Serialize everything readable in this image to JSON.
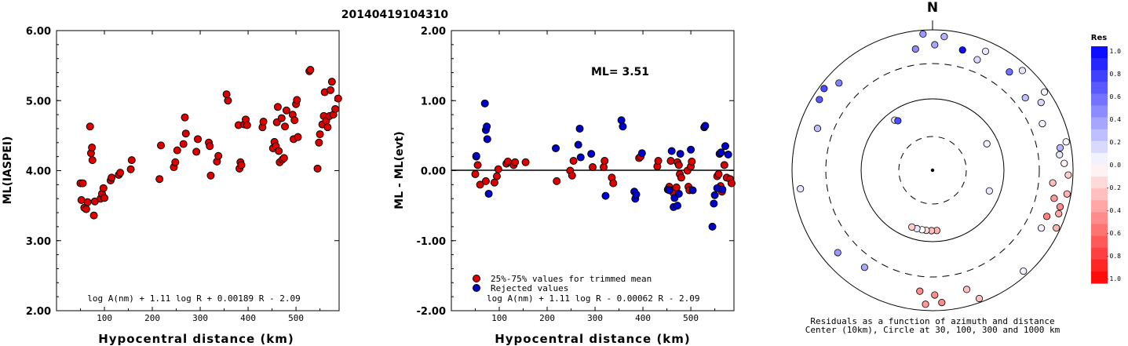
{
  "title": "20140419104310",
  "chart_data": [
    {
      "type": "scatter",
      "ylabel": "ML(IASPEI)",
      "xlabel": "Hypocentral distance (km)",
      "xlim": [
        0,
        590
      ],
      "ylim": [
        2.0,
        6.0
      ],
      "xticks": [
        "100",
        "200",
        "300",
        "400",
        "500"
      ],
      "yticks": [
        "2.00",
        "3.00",
        "4.00",
        "5.00",
        "6.00"
      ],
      "formula": "log A(nm) + 1.11 log R + 0.00189 R - 2.09",
      "points": [
        [
          50,
          3.82
        ],
        [
          52,
          3.58
        ],
        [
          55,
          3.82
        ],
        [
          58,
          3.47
        ],
        [
          62,
          3.45
        ],
        [
          65,
          3.55
        ],
        [
          70,
          4.63
        ],
        [
          72,
          4.25
        ],
        [
          74,
          4.33
        ],
        [
          75,
          4.15
        ],
        [
          78,
          3.36
        ],
        [
          80,
          3.56
        ],
        [
          92,
          3.6
        ],
        [
          95,
          3.67
        ],
        [
          98,
          3.75
        ],
        [
          100,
          3.61
        ],
        [
          113,
          3.86
        ],
        [
          115,
          3.9
        ],
        [
          130,
          3.94
        ],
        [
          133,
          3.97
        ],
        [
          155,
          4.02
        ],
        [
          157,
          4.15
        ],
        [
          215,
          3.88
        ],
        [
          218,
          4.36
        ],
        [
          245,
          4.05
        ],
        [
          248,
          4.12
        ],
        [
          252,
          4.29
        ],
        [
          265,
          4.38
        ],
        [
          268,
          4.76
        ],
        [
          270,
          4.53
        ],
        [
          292,
          4.27
        ],
        [
          295,
          4.45
        ],
        [
          318,
          4.4
        ],
        [
          320,
          4.35
        ],
        [
          322,
          3.93
        ],
        [
          335,
          4.13
        ],
        [
          338,
          4.21
        ],
        [
          355,
          5.09
        ],
        [
          358,
          5.0
        ],
        [
          380,
          4.65
        ],
        [
          382,
          4.03
        ],
        [
          384,
          4.12
        ],
        [
          386,
          4.08
        ],
        [
          392,
          4.66
        ],
        [
          395,
          4.73
        ],
        [
          398,
          4.65
        ],
        [
          430,
          4.62
        ],
        [
          432,
          4.7
        ],
        [
          452,
          4.32
        ],
        [
          455,
          4.41
        ],
        [
          458,
          4.35
        ],
        [
          460,
          4.69
        ],
        [
          462,
          4.91
        ],
        [
          464,
          4.28
        ],
        [
          466,
          4.12
        ],
        [
          470,
          4.75
        ],
        [
          472,
          4.16
        ],
        [
          475,
          4.18
        ],
        [
          477,
          4.63
        ],
        [
          480,
          4.86
        ],
        [
          493,
          4.8
        ],
        [
          495,
          4.45
        ],
        [
          497,
          4.72
        ],
        [
          500,
          4.95
        ],
        [
          502,
          5.01
        ],
        [
          504,
          4.48
        ],
        [
          528,
          5.42
        ],
        [
          530,
          5.44
        ],
        [
          545,
          4.03
        ],
        [
          548,
          4.4
        ],
        [
          550,
          4.52
        ],
        [
          555,
          4.66
        ],
        [
          558,
          4.78
        ],
        [
          560,
          5.12
        ],
        [
          563,
          4.71
        ],
        [
          566,
          4.62
        ],
        [
          570,
          4.78
        ],
        [
          572,
          5.15
        ],
        [
          575,
          5.27
        ],
        [
          578,
          4.8
        ],
        [
          582,
          4.88
        ],
        [
          588,
          5.03
        ]
      ]
    },
    {
      "type": "scatter",
      "ylabel": "ML - ML(evt)",
      "xlabel": "Hypocentral distance (km)",
      "xlim": [
        0,
        590
      ],
      "ylim": [
        -2.0,
        2.0
      ],
      "xticks": [
        "100",
        "200",
        "300",
        "400",
        "500"
      ],
      "yticks": [
        "-2.00",
        "-1.00",
        "0.00",
        "1.00",
        "2.00"
      ],
      "annotation": "ML= 3.51",
      "formula": "log A(nm) + 1.11 log R - 0.00062 R - 2.09",
      "legend": [
        "25%-75% values for trimmed mean",
        "Rejected values"
      ],
      "series": [
        {
          "name": "25%-75% values for trimmed mean",
          "color": "#dd0000",
          "points": [
            [
              50,
              -0.05
            ],
            [
              52,
              0.2
            ],
            [
              55,
              0.08
            ],
            [
              60,
              -0.2
            ],
            [
              72,
              -0.15
            ],
            [
              90,
              -0.17
            ],
            [
              95,
              -0.08
            ],
            [
              98,
              0.02
            ],
            [
              115,
              0.1
            ],
            [
              118,
              0.13
            ],
            [
              130,
              0.08
            ],
            [
              133,
              0.12
            ],
            [
              155,
              0.12
            ],
            [
              220,
              -0.15
            ],
            [
              248,
              0.0
            ],
            [
              252,
              -0.07
            ],
            [
              255,
              0.14
            ],
            [
              295,
              0.05
            ],
            [
              318,
              0.05
            ],
            [
              320,
              0.14
            ],
            [
              335,
              -0.1
            ],
            [
              338,
              -0.18
            ],
            [
              392,
              0.18
            ],
            [
              395,
              0.2
            ],
            [
              430,
              0.06
            ],
            [
              432,
              0.14
            ],
            [
              455,
              -0.23
            ],
            [
              458,
              0.14
            ],
            [
              462,
              -0.28
            ],
            [
              464,
              -0.32
            ],
            [
              470,
              -0.24
            ],
            [
              472,
              0.12
            ],
            [
              475,
              0.08
            ],
            [
              477,
              -0.05
            ],
            [
              480,
              -0.1
            ],
            [
              493,
              0.0
            ],
            [
              495,
              -0.23
            ],
            [
              497,
              -0.28
            ],
            [
              500,
              0.06
            ],
            [
              502,
              0.13
            ],
            [
              555,
              -0.08
            ],
            [
              558,
              -0.05
            ],
            [
              562,
              -0.22
            ],
            [
              565,
              -0.3
            ],
            [
              570,
              0.08
            ],
            [
              575,
              -0.1
            ],
            [
              582,
              -0.12
            ],
            [
              585,
              -0.18
            ]
          ]
        },
        {
          "name": "Rejected values",
          "color": "#0000cc",
          "points": [
            [
              52,
              0.21
            ],
            [
              70,
              0.96
            ],
            [
              72,
              0.58
            ],
            [
              74,
              0.63
            ],
            [
              75,
              0.45
            ],
            [
              78,
              -0.33
            ],
            [
              218,
              0.32
            ],
            [
              265,
              0.37
            ],
            [
              268,
              0.6
            ],
            [
              270,
              0.19
            ],
            [
              292,
              0.24
            ],
            [
              322,
              -0.36
            ],
            [
              355,
              0.72
            ],
            [
              358,
              0.63
            ],
            [
              382,
              -0.3
            ],
            [
              384,
              -0.4
            ],
            [
              386,
              -0.34
            ],
            [
              398,
              0.25
            ],
            [
              452,
              -0.27
            ],
            [
              455,
              -0.28
            ],
            [
              460,
              0.28
            ],
            [
              464,
              -0.52
            ],
            [
              466,
              -0.39
            ],
            [
              472,
              -0.5
            ],
            [
              475,
              -0.33
            ],
            [
              478,
              0.24
            ],
            [
              500,
              0.3
            ],
            [
              504,
              -0.28
            ],
            [
              528,
              0.62
            ],
            [
              530,
              0.64
            ],
            [
              545,
              -0.8
            ],
            [
              548,
              -0.47
            ],
            [
              550,
              -0.35
            ],
            [
              555,
              -0.25
            ],
            [
              560,
              0.24
            ],
            [
              563,
              0.26
            ],
            [
              566,
              -0.27
            ],
            [
              572,
              0.35
            ],
            [
              578,
              0.23
            ]
          ]
        }
      ]
    },
    {
      "type": "scatter",
      "north_label": "N",
      "caption_line1": "Residuals as a function of azimuth and distance",
      "caption_line2": "Center (10km), Circle at 30, 100, 300 and 1000 km",
      "colorbar_title": "Res",
      "colorbar_ticks": [
        "1.0",
        "0.8",
        "0.6",
        "0.4",
        "0.2",
        "0.0",
        "-0.2",
        "-0.4",
        "-0.6",
        "-0.8",
        "-1.0"
      ],
      "points_azimuth_residual": [
        [
          -8,
          -1.0,
          0.45
        ],
        [
          -4,
          -1.0,
          0.4
        ],
        [
          1,
          -1.0,
          0.35
        ],
        [
          5,
          -1.0,
          0.3
        ],
        [
          14,
          -1.0,
          0.95
        ],
        [
          22,
          -1.0,
          0.15
        ],
        [
          24,
          -1.0,
          0.1
        ],
        [
          38,
          -1.0,
          0.55
        ],
        [
          42,
          -1.0,
          0.1
        ],
        [
          52,
          -1.0,
          0.25
        ],
        [
          55,
          -1.0,
          0.05
        ],
        [
          58,
          -1.0,
          0.15
        ],
        [
          67,
          -1.0,
          0.05
        ],
        [
          78,
          -1.0,
          0.05
        ],
        [
          80,
          -1.0,
          0.3
        ],
        [
          83,
          -1.0,
          0.1
        ],
        [
          87,
          -1.0,
          -0.05
        ],
        [
          92,
          -1.0,
          -0.2
        ],
        [
          96,
          -1.0,
          -0.25
        ],
        [
          100,
          -1.0,
          -0.3
        ],
        [
          103,
          -1.0,
          -0.4
        ],
        [
          106,
          -1.0,
          -0.45
        ],
        [
          109,
          -1.0,
          -0.35
        ],
        [
          112,
          -1.0,
          -0.5
        ],
        [
          115,
          -1.0,
          -0.3
        ],
        [
          118,
          -1.0,
          0.05
        ],
        [
          138,
          -1.0,
          0.05
        ],
        [
          160,
          -1.0,
          -0.25
        ],
        [
          164,
          -1.0,
          -0.25
        ],
        [
          176,
          -1.0,
          -0.45
        ],
        [
          179,
          -1.0,
          -0.45
        ],
        [
          183,
          -1.0,
          -0.4
        ],
        [
          186,
          -1.0,
          -0.45
        ],
        [
          176,
          -0.52,
          -0.3
        ],
        [
          181,
          -0.52,
          -0.25
        ],
        [
          186,
          -0.52,
          -0.15
        ],
        [
          190,
          -0.52,
          0.0
        ],
        [
          195,
          -0.52,
          0.1
        ],
        [
          200,
          -0.52,
          -0.2
        ],
        [
          215,
          -1.0,
          0.35
        ],
        [
          229,
          -1.0,
          0.4
        ],
        [
          262,
          -1.0,
          0.1
        ],
        [
          290,
          -1.0,
          0.25
        ],
        [
          302,
          -1.0,
          0.65
        ],
        [
          307,
          -1.0,
          0.7
        ],
        [
          313,
          -1.0,
          0.5
        ],
        [
          323,
          -0.6,
          0.1
        ],
        [
          325,
          -0.52,
          0.7
        ],
        [
          110,
          -0.52,
          0.1
        ],
        [
          64,
          -0.52,
          0.05
        ]
      ]
    }
  ]
}
